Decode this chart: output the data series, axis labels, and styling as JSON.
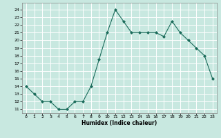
{
  "x": [
    0,
    1,
    2,
    3,
    4,
    5,
    6,
    7,
    8,
    9,
    10,
    11,
    12,
    13,
    14,
    15,
    16,
    17,
    18,
    19,
    20,
    21,
    22,
    23
  ],
  "y": [
    14,
    13,
    12,
    12,
    11,
    11,
    12,
    12,
    14,
    17.5,
    21,
    24,
    22.5,
    21,
    21,
    21,
    21,
    20.5,
    22.5,
    21,
    20,
    19,
    18,
    15
  ],
  "line_color": "#1a6b5a",
  "marker_color": "#1a6b5a",
  "bg_color": "#c8e8e0",
  "grid_color": "#ffffff",
  "xlabel": "Humidex (Indice chaleur)",
  "ylim_min": 10.5,
  "ylim_max": 24.9,
  "xlim_min": -0.5,
  "xlim_max": 23.5,
  "yticks": [
    11,
    12,
    13,
    14,
    15,
    16,
    17,
    18,
    19,
    20,
    21,
    22,
    23,
    24
  ],
  "xticks": [
    0,
    1,
    2,
    3,
    4,
    5,
    6,
    7,
    8,
    9,
    10,
    11,
    12,
    13,
    14,
    15,
    16,
    17,
    18,
    19,
    20,
    21,
    22,
    23
  ]
}
